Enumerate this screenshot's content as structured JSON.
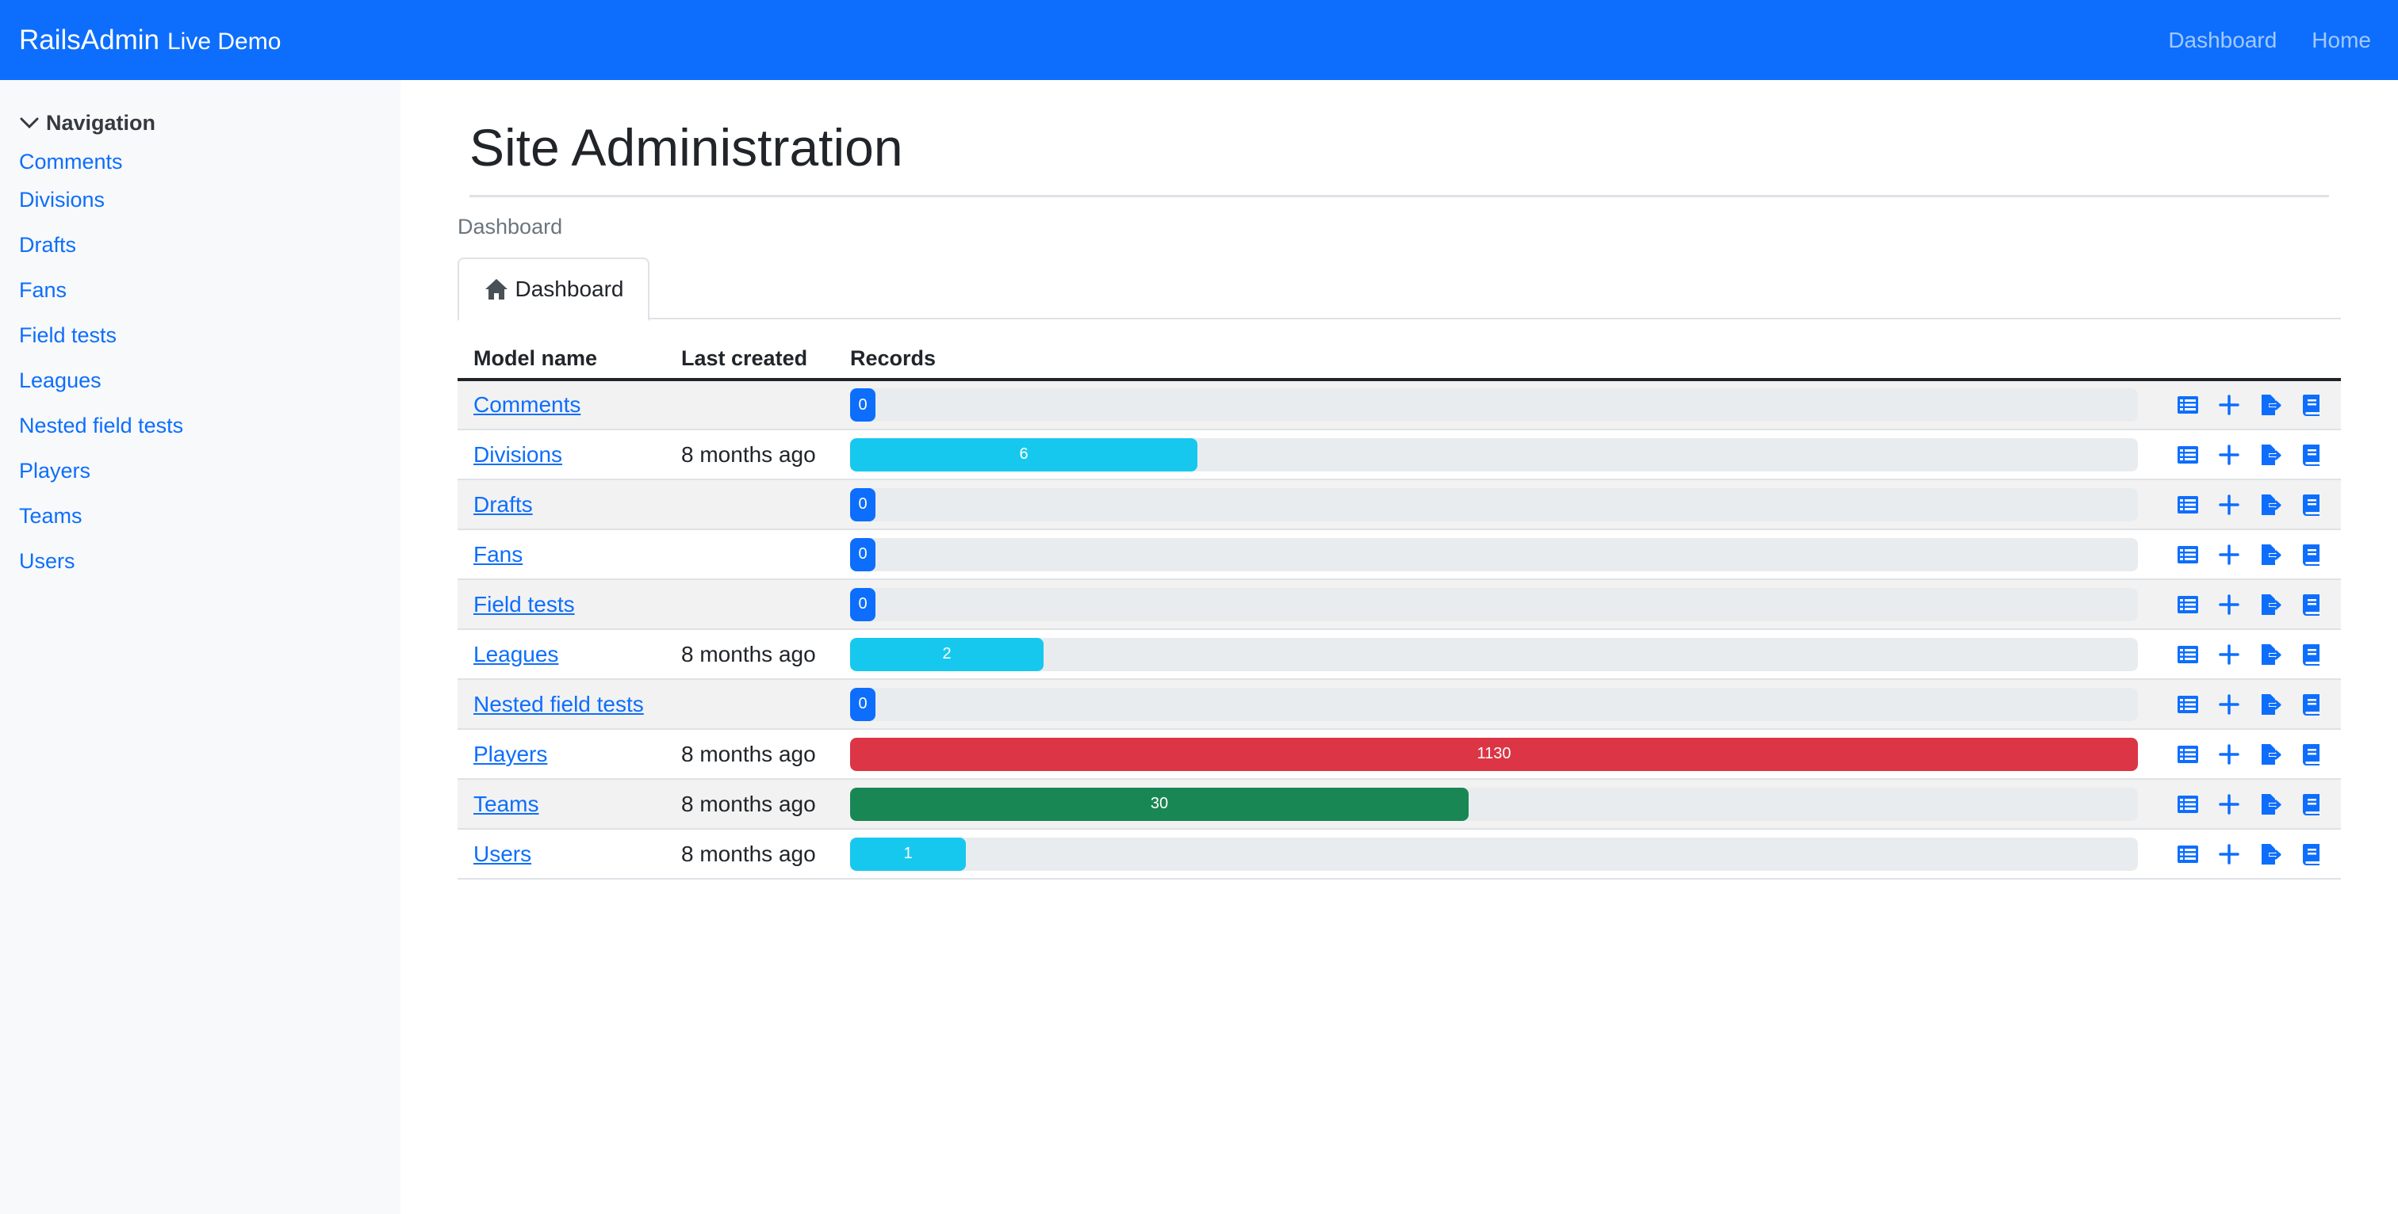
{
  "navbar": {
    "brand_main": "RailsAdmin",
    "brand_sub": "Live Demo",
    "links": [
      "Dashboard",
      "Home"
    ]
  },
  "sidebar": {
    "header": "Navigation",
    "items": [
      "Comments",
      "Divisions",
      "Drafts",
      "Fans",
      "Field tests",
      "Leagues",
      "Nested field tests",
      "Players",
      "Teams",
      "Users"
    ]
  },
  "main": {
    "title": "Site Administration",
    "breadcrumb": "Dashboard",
    "tab_label": "Dashboard",
    "columns": [
      "Model name",
      "Last created",
      "Records"
    ]
  },
  "rows": [
    {
      "model": "Comments",
      "last_created": "",
      "records": 0,
      "fill": 0.0,
      "color": "#0d6efd"
    },
    {
      "model": "Divisions",
      "last_created": "8 months ago",
      "records": 6,
      "fill": 0.27,
      "color": "#17c8ee"
    },
    {
      "model": "Drafts",
      "last_created": "",
      "records": 0,
      "fill": 0.0,
      "color": "#0d6efd"
    },
    {
      "model": "Fans",
      "last_created": "",
      "records": 0,
      "fill": 0.0,
      "color": "#0d6efd"
    },
    {
      "model": "Field tests",
      "last_created": "",
      "records": 0,
      "fill": 0.0,
      "color": "#0d6efd"
    },
    {
      "model": "Leagues",
      "last_created": "8 months ago",
      "records": 2,
      "fill": 0.15,
      "color": "#17c8ee"
    },
    {
      "model": "Nested field tests",
      "last_created": "",
      "records": 0,
      "fill": 0.0,
      "color": "#0d6efd"
    },
    {
      "model": "Players",
      "last_created": "8 months ago",
      "records": 1130,
      "fill": 1.0,
      "color": "#dc3545"
    },
    {
      "model": "Teams",
      "last_created": "8 months ago",
      "records": 30,
      "fill": 0.48,
      "color": "#198754"
    },
    {
      "model": "Users",
      "last_created": "8 months ago",
      "records": 1,
      "fill": 0.09,
      "color": "#17c8ee"
    }
  ],
  "row_actions": [
    "list-icon",
    "plus-icon",
    "export-icon",
    "book-icon"
  ],
  "colors": {
    "primary": "#0d6efd",
    "info": "#17c8ee",
    "danger": "#dc3545",
    "success": "#198754"
  }
}
